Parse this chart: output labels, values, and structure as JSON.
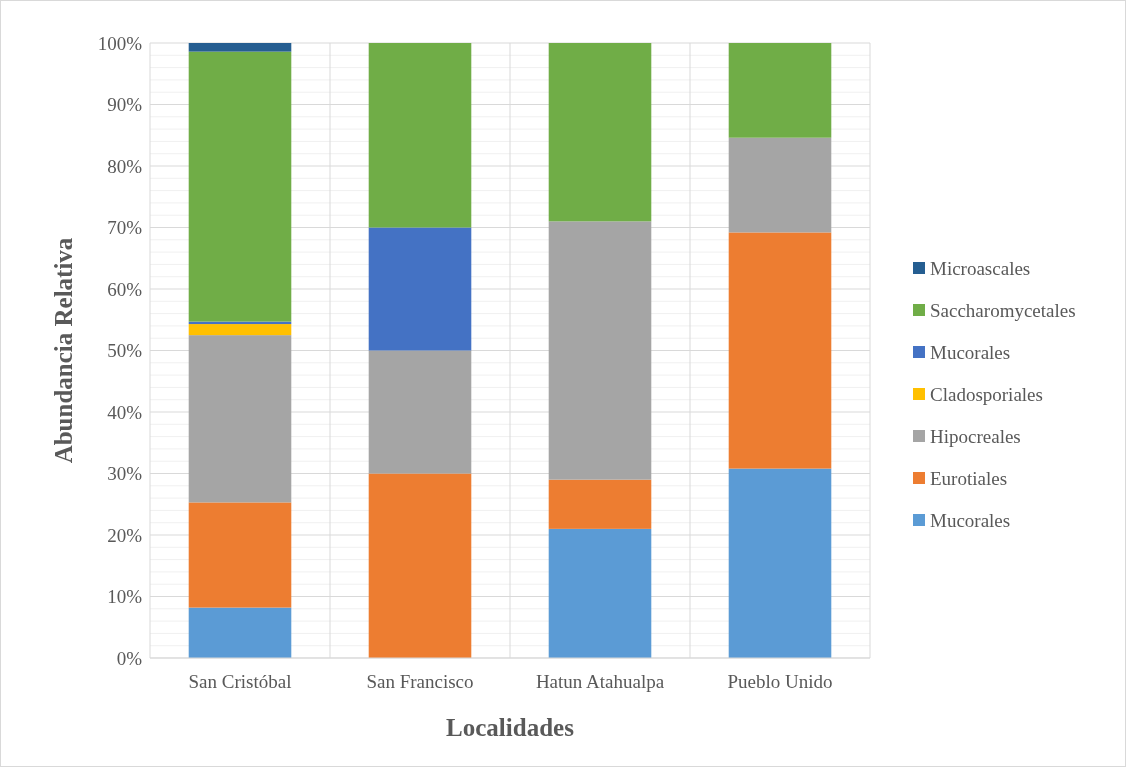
{
  "chart_data": {
    "type": "bar",
    "stacked": true,
    "xlabel": "Localidades",
    "ylabel": "Abundancia Relativa",
    "categories": [
      "San Cristóbal",
      "San Francisco",
      "Hatun Atahualpa",
      "Pueblo Unido"
    ],
    "series": [
      {
        "name": "Mucorales",
        "color": "#5b9bd5",
        "values": [
          8.2,
          0,
          21,
          30.8
        ]
      },
      {
        "name": "Eurotiales",
        "color": "#ed7d31",
        "values": [
          17.1,
          30,
          8,
          38.4
        ]
      },
      {
        "name": "Hipocreales",
        "color": "#a5a5a5",
        "values": [
          27.2,
          20,
          42,
          15.4
        ]
      },
      {
        "name": "Cladosporiales",
        "color": "#ffc000",
        "values": [
          1.8,
          0,
          0,
          0
        ]
      },
      {
        "name": "Mucorales",
        "color": "#4472c4",
        "values": [
          0.4,
          20,
          0,
          0
        ]
      },
      {
        "name": "Saccharomycetales",
        "color": "#70ad47",
        "values": [
          43.9,
          30,
          29,
          15.4
        ]
      },
      {
        "name": "Microascales",
        "color": "#255e91",
        "values": [
          1.4,
          0,
          0,
          0
        ]
      }
    ],
    "ylim": [
      0,
      100
    ],
    "yticks": [
      {
        "value": 0,
        "label": "0%"
      },
      {
        "value": 2,
        "label": null
      },
      {
        "value": 4,
        "label": null
      },
      {
        "value": 6,
        "label": null
      },
      {
        "value": 8,
        "label": null
      },
      {
        "value": 10,
        "label": "10%"
      },
      {
        "value": 12,
        "label": null
      },
      {
        "value": 14,
        "label": null
      },
      {
        "value": 16,
        "label": null
      },
      {
        "value": 18,
        "label": null
      },
      {
        "value": 20,
        "label": "20%"
      },
      {
        "value": 22,
        "label": null
      },
      {
        "value": 24,
        "label": null
      },
      {
        "value": 26,
        "label": null
      },
      {
        "value": 28,
        "label": null
      },
      {
        "value": 30,
        "label": "30%"
      },
      {
        "value": 32,
        "label": null
      },
      {
        "value": 34,
        "label": null
      },
      {
        "value": 36,
        "label": null
      },
      {
        "value": 38,
        "label": null
      },
      {
        "value": 40,
        "label": "40%"
      },
      {
        "value": 42,
        "label": null
      },
      {
        "value": 44,
        "label": null
      },
      {
        "value": 46,
        "label": null
      },
      {
        "value": 48,
        "label": null
      },
      {
        "value": 50,
        "label": "50%"
      },
      {
        "value": 52,
        "label": null
      },
      {
        "value": 54,
        "label": null
      },
      {
        "value": 56,
        "label": null
      },
      {
        "value": 58,
        "label": null
      },
      {
        "value": 60,
        "label": "60%"
      },
      {
        "value": 62,
        "label": null
      },
      {
        "value": 64,
        "label": null
      },
      {
        "value": 66,
        "label": null
      },
      {
        "value": 68,
        "label": null
      },
      {
        "value": 70,
        "label": "70%"
      },
      {
        "value": 72,
        "label": null
      },
      {
        "value": 74,
        "label": null
      },
      {
        "value": 76,
        "label": null
      },
      {
        "value": 78,
        "label": null
      },
      {
        "value": 80,
        "label": "80%"
      },
      {
        "value": 82,
        "label": null
      },
      {
        "value": 84,
        "label": null
      },
      {
        "value": 86,
        "label": null
      },
      {
        "value": 88,
        "label": null
      },
      {
        "value": 90,
        "label": "90%"
      },
      {
        "value": 92,
        "label": null
      },
      {
        "value": 94,
        "label": null
      },
      {
        "value": 96,
        "label": null
      },
      {
        "value": 98,
        "label": null
      },
      {
        "value": 100,
        "label": "100%"
      }
    ],
    "grid": true,
    "legend": "right"
  }
}
